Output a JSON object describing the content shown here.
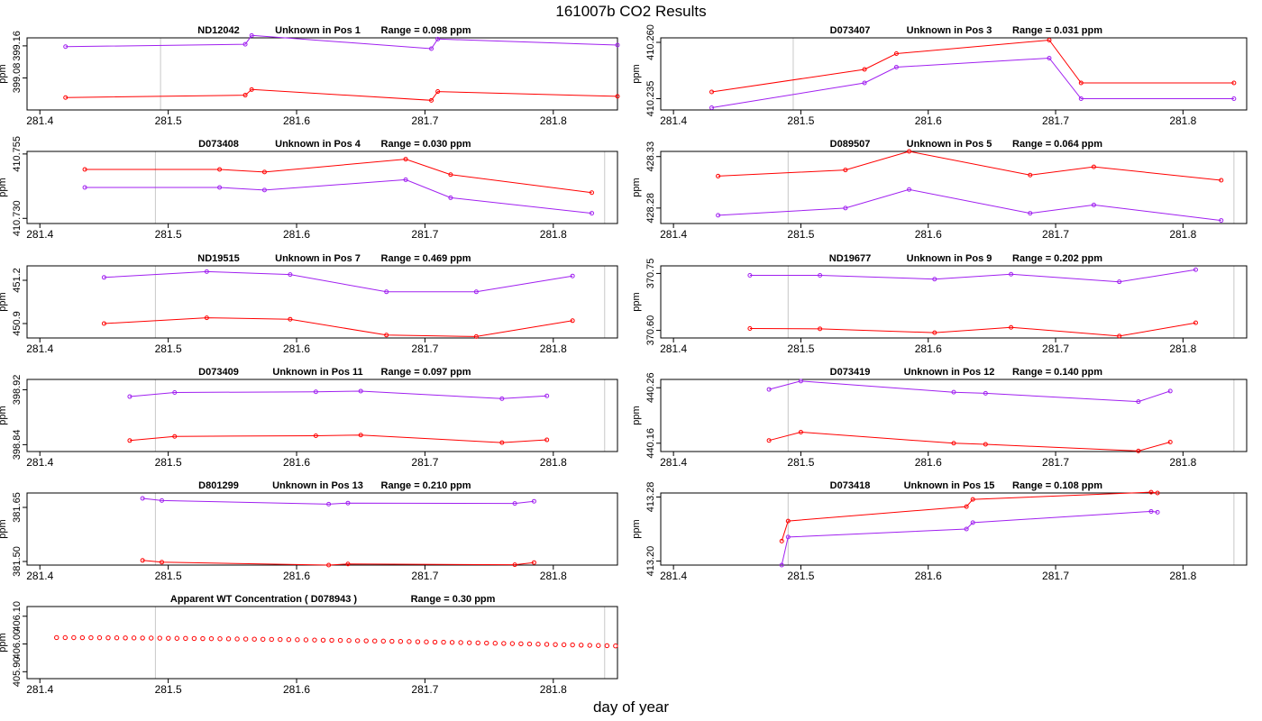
{
  "title": "161007b  CO2 Results",
  "xlabel": "day of year",
  "colors": {
    "series_a": "#ff0000",
    "series_b": "#a020f0",
    "ref_line": "#c8c8c8",
    "frame": "#000000"
  },
  "chart_data": [
    {
      "type": "line",
      "title_id": "ND12042",
      "title_pos": "Unknown in Pos 1",
      "title_range": "Range =  0.098 ppm",
      "ylabel": "ppm",
      "ytick_labels": [
        "399.08",
        "399.16"
      ],
      "xlim": [
        281.39,
        281.85
      ],
      "xticks": [
        281.4,
        281.5,
        281.6,
        281.7,
        281.8
      ],
      "xtick_labels": [
        "281.4",
        "281.5",
        "281.6",
        "281.7",
        "281.8"
      ],
      "ylim": [
        399.0,
        399.18
      ],
      "yticks": [
        399.08,
        399.16
      ],
      "vlines": [
        281.494,
        281.85
      ],
      "series": [
        {
          "color": "red",
          "x": [
            281.42,
            281.56,
            281.565,
            281.705,
            281.71,
            281.85
          ],
          "y": [
            399.031,
            399.037,
            399.051,
            399.024,
            399.046,
            399.034
          ]
        },
        {
          "color": "purple",
          "x": [
            281.42,
            281.56,
            281.565,
            281.705,
            281.71,
            281.85
          ],
          "y": [
            399.158,
            399.164,
            399.186,
            399.153,
            399.177,
            399.162
          ]
        }
      ]
    },
    {
      "type": "line",
      "title_id": "D073407",
      "title_pos": "Unknown in Pos 3",
      "title_range": "Range =  0.031 ppm",
      "ylabel": "ppm",
      "ytick_labels": [
        "410.235",
        "410.260"
      ],
      "xlim": [
        281.39,
        281.85
      ],
      "xticks": [
        281.4,
        281.5,
        281.6,
        281.7,
        281.8
      ],
      "xtick_labels": [
        "281.4",
        "281.5",
        "281.6",
        "281.7",
        "281.8"
      ],
      "ylim": [
        410.23,
        410.262
      ],
      "yticks": [
        410.235,
        410.26
      ],
      "vlines": [
        281.494,
        281.85
      ],
      "series": [
        {
          "color": "red",
          "x": [
            281.43,
            281.55,
            281.575,
            281.695,
            281.72,
            281.84
          ],
          "y": [
            410.238,
            410.248,
            410.255,
            410.261,
            410.242,
            410.242
          ]
        },
        {
          "color": "purple",
          "x": [
            281.43,
            281.55,
            281.575,
            281.695,
            281.72,
            281.84
          ],
          "y": [
            410.231,
            410.242,
            410.249,
            410.253,
            410.235,
            410.235
          ]
        }
      ]
    },
    {
      "type": "line",
      "title_id": "D073408",
      "title_pos": "Unknown in Pos 4",
      "title_range": "Range =  0.030 ppm",
      "ylabel": "ppm",
      "ytick_labels": [
        "410.730",
        "410.755"
      ],
      "xlim": [
        281.39,
        281.85
      ],
      "xticks": [
        281.4,
        281.5,
        281.6,
        281.7,
        281.8
      ],
      "xtick_labels": [
        "281.4",
        "281.5",
        "281.6",
        "281.7",
        "281.8"
      ],
      "ylim": [
        410.728,
        410.756
      ],
      "yticks": [
        410.73,
        410.755
      ],
      "vlines": [
        281.49,
        281.84
      ],
      "series": [
        {
          "color": "red",
          "x": [
            281.435,
            281.54,
            281.575,
            281.685,
            281.72,
            281.83
          ],
          "y": [
            410.749,
            410.749,
            410.748,
            410.753,
            410.747,
            410.74
          ]
        },
        {
          "color": "purple",
          "x": [
            281.435,
            281.54,
            281.575,
            281.685,
            281.72,
            281.83
          ],
          "y": [
            410.742,
            410.742,
            410.741,
            410.745,
            410.738,
            410.732
          ]
        }
      ]
    },
    {
      "type": "line",
      "title_id": "D089507",
      "title_pos": "Unknown in Pos 5",
      "title_range": "Range =  0.064 ppm",
      "ylabel": "ppm",
      "ytick_labels": [
        "428.28",
        "428.33"
      ],
      "xlim": [
        281.39,
        281.85
      ],
      "xticks": [
        281.4,
        281.5,
        281.6,
        281.7,
        281.8
      ],
      "xtick_labels": [
        "281.4",
        "281.5",
        "281.6",
        "281.7",
        "281.8"
      ],
      "ylim": [
        428.265,
        428.335
      ],
      "yticks": [
        428.28,
        428.33
      ],
      "vlines": [
        281.49,
        281.84
      ],
      "series": [
        {
          "color": "red",
          "x": [
            281.435,
            281.535,
            281.585,
            281.68,
            281.73,
            281.83
          ],
          "y": [
            428.311,
            428.317,
            428.335,
            428.312,
            428.32,
            428.307
          ]
        },
        {
          "color": "purple",
          "x": [
            281.435,
            281.535,
            281.585,
            281.68,
            281.73,
            281.83
          ],
          "y": [
            428.273,
            428.28,
            428.298,
            428.275,
            428.283,
            428.268
          ]
        }
      ]
    },
    {
      "type": "line",
      "title_id": "ND19515",
      "title_pos": "Unknown in Pos 7",
      "title_range": "Range =  0.469 ppm",
      "ylabel": "ppm",
      "ytick_labels": [
        "450.9",
        "451.2"
      ],
      "xlim": [
        281.39,
        281.85
      ],
      "xticks": [
        281.4,
        281.5,
        281.6,
        281.7,
        281.8
      ],
      "xtick_labels": [
        "281.4",
        "281.5",
        "281.6",
        "281.7",
        "281.8"
      ],
      "ylim": [
        450.8,
        451.3
      ],
      "yticks": [
        450.9,
        451.2
      ],
      "vlines": [
        281.49,
        281.84
      ],
      "series": [
        {
          "color": "red",
          "x": [
            281.45,
            281.53,
            281.595,
            281.67,
            281.74,
            281.815
          ],
          "y": [
            450.9,
            450.94,
            450.93,
            450.82,
            450.81,
            450.92
          ]
        },
        {
          "color": "purple",
          "x": [
            281.45,
            281.53,
            281.595,
            281.67,
            281.74,
            281.815
          ],
          "y": [
            451.22,
            451.26,
            451.24,
            451.12,
            451.12,
            451.23
          ]
        }
      ]
    },
    {
      "type": "line",
      "title_id": "ND19677",
      "title_pos": "Unknown in Pos 9",
      "title_range": "Range =  0.202 ppm",
      "ylabel": "ppm",
      "ytick_labels": [
        "370.60",
        "370.75"
      ],
      "xlim": [
        281.39,
        281.85
      ],
      "xticks": [
        281.4,
        281.5,
        281.6,
        281.7,
        281.8
      ],
      "xtick_labels": [
        "281.4",
        "281.5",
        "281.6",
        "281.7",
        "281.8"
      ],
      "ylim": [
        370.58,
        370.77
      ],
      "yticks": [
        370.6,
        370.75
      ],
      "vlines": [
        281.49,
        281.84
      ],
      "series": [
        {
          "color": "red",
          "x": [
            281.46,
            281.515,
            281.605,
            281.665,
            281.75,
            281.81
          ],
          "y": [
            370.605,
            370.604,
            370.594,
            370.608,
            370.585,
            370.62
          ]
        },
        {
          "color": "purple",
          "x": [
            281.46,
            281.515,
            281.605,
            281.665,
            281.75,
            281.81
          ],
          "y": [
            370.745,
            370.745,
            370.735,
            370.748,
            370.728,
            370.76
          ]
        }
      ]
    },
    {
      "type": "line",
      "title_id": "D073409",
      "title_pos": "Unknown in Pos 11",
      "title_range": "Range =  0.097 ppm",
      "ylabel": "ppm",
      "ytick_labels": [
        "398.84",
        "398.92"
      ],
      "xlim": [
        281.39,
        281.85
      ],
      "xticks": [
        281.4,
        281.5,
        281.6,
        281.7,
        281.8
      ],
      "xtick_labels": [
        "281.4",
        "281.5",
        "281.6",
        "281.7",
        "281.8"
      ],
      "ylim": [
        398.83,
        398.935
      ],
      "yticks": [
        398.84,
        398.92
      ],
      "vlines": [
        281.49,
        281.84
      ],
      "series": [
        {
          "color": "red",
          "x": [
            281.47,
            281.505,
            281.615,
            281.65,
            281.76,
            281.795
          ],
          "y": [
            398.846,
            398.852,
            398.853,
            398.854,
            398.843,
            398.847
          ]
        },
        {
          "color": "purple",
          "x": [
            281.47,
            281.505,
            281.615,
            281.65,
            281.76,
            281.795
          ],
          "y": [
            398.91,
            398.916,
            398.917,
            398.918,
            398.907,
            398.911
          ]
        }
      ]
    },
    {
      "type": "line",
      "title_id": "D073419",
      "title_pos": "Unknown in Pos 12",
      "title_range": "Range =  0.140 ppm",
      "ylabel": "ppm",
      "ytick_labels": [
        "440.16",
        "440.26"
      ],
      "xlim": [
        281.39,
        281.85
      ],
      "xticks": [
        281.4,
        281.5,
        281.6,
        281.7,
        281.8
      ],
      "xtick_labels": [
        "281.4",
        "281.5",
        "281.6",
        "281.7",
        "281.8"
      ],
      "ylim": [
        440.145,
        440.275
      ],
      "yticks": [
        440.16,
        440.26
      ],
      "vlines": [
        281.49,
        281.84
      ],
      "series": [
        {
          "color": "red",
          "x": [
            281.475,
            281.5,
            281.62,
            281.645,
            281.765,
            281.79
          ],
          "y": [
            440.165,
            440.18,
            440.16,
            440.158,
            440.146,
            440.162
          ]
        },
        {
          "color": "purple",
          "x": [
            281.475,
            281.5,
            281.62,
            281.645,
            281.765,
            281.79
          ],
          "y": [
            440.257,
            440.272,
            440.252,
            440.25,
            440.235,
            440.254
          ]
        }
      ]
    },
    {
      "type": "line",
      "title_id": "D801299",
      "title_pos": "Unknown in Pos 13",
      "title_range": "Range =  0.210 ppm",
      "ylabel": "ppm",
      "ytick_labels": [
        "381.50",
        "381.65"
      ],
      "xlim": [
        281.39,
        281.85
      ],
      "xticks": [
        281.4,
        281.5,
        281.6,
        281.7,
        281.8
      ],
      "xtick_labels": [
        "281.4",
        "281.5",
        "281.6",
        "281.7",
        "281.8"
      ],
      "ylim": [
        381.49,
        381.69
      ],
      "yticks": [
        381.5,
        381.65
      ],
      "vlines": [
        281.49,
        281.85
      ],
      "series": [
        {
          "color": "red",
          "x": [
            281.48,
            281.495,
            281.625,
            281.64,
            281.77,
            281.785
          ],
          "y": [
            381.503,
            381.498,
            381.49,
            381.493,
            381.491,
            381.497
          ]
        },
        {
          "color": "purple",
          "x": [
            281.48,
            281.495,
            281.625,
            281.64,
            281.77,
            281.785
          ],
          "y": [
            381.675,
            381.669,
            381.659,
            381.662,
            381.661,
            381.667
          ]
        }
      ]
    },
    {
      "type": "line",
      "title_id": "D073418",
      "title_pos": "Unknown in Pos 15",
      "title_range": "Range =  0.108 ppm",
      "ylabel": "ppm",
      "ytick_labels": [
        "413.20",
        "413.28"
      ],
      "xlim": [
        281.39,
        281.85
      ],
      "xticks": [
        281.4,
        281.5,
        281.6,
        281.7,
        281.8
      ],
      "xtick_labels": [
        "281.4",
        "281.5",
        "281.6",
        "281.7",
        "281.8"
      ],
      "ylim": [
        413.195,
        413.285
      ],
      "yticks": [
        413.2,
        413.28
      ],
      "vlines": [
        281.49,
        281.84
      ],
      "series": [
        {
          "color": "red",
          "x": [
            281.485,
            281.49,
            281.63,
            281.635,
            281.775,
            281.78
          ],
          "y": [
            413.225,
            413.25,
            413.268,
            413.277,
            413.286,
            413.285
          ]
        },
        {
          "color": "purple",
          "x": [
            281.485,
            281.49,
            281.63,
            281.635,
            281.775,
            281.78
          ],
          "y": [
            413.195,
            413.23,
            413.24,
            413.248,
            413.262,
            413.261
          ]
        }
      ]
    },
    {
      "type": "scatter",
      "title_id": "Apparent WT Concentration ( D078943 )",
      "title_pos": "",
      "title_range": "Range = 0.30 ppm",
      "ylabel": "ppm",
      "ytick_labels": [
        "405.90",
        "406.00",
        "406.10"
      ],
      "xlim": [
        281.39,
        281.85
      ],
      "xticks": [
        281.4,
        281.5,
        281.6,
        281.7,
        281.8
      ],
      "xtick_labels": [
        "281.4",
        "281.5",
        "281.6",
        "281.7",
        "281.8"
      ],
      "ylim": [
        405.875,
        406.135
      ],
      "yticks": [
        405.9,
        406.0,
        406.1
      ],
      "vlines": [
        281.49,
        281.84
      ],
      "points": {
        "color": "red",
        "x_start": 281.413,
        "x_step": 0.0067,
        "count": 66,
        "y_start": 406.023,
        "y_end": 405.993
      }
    }
  ]
}
